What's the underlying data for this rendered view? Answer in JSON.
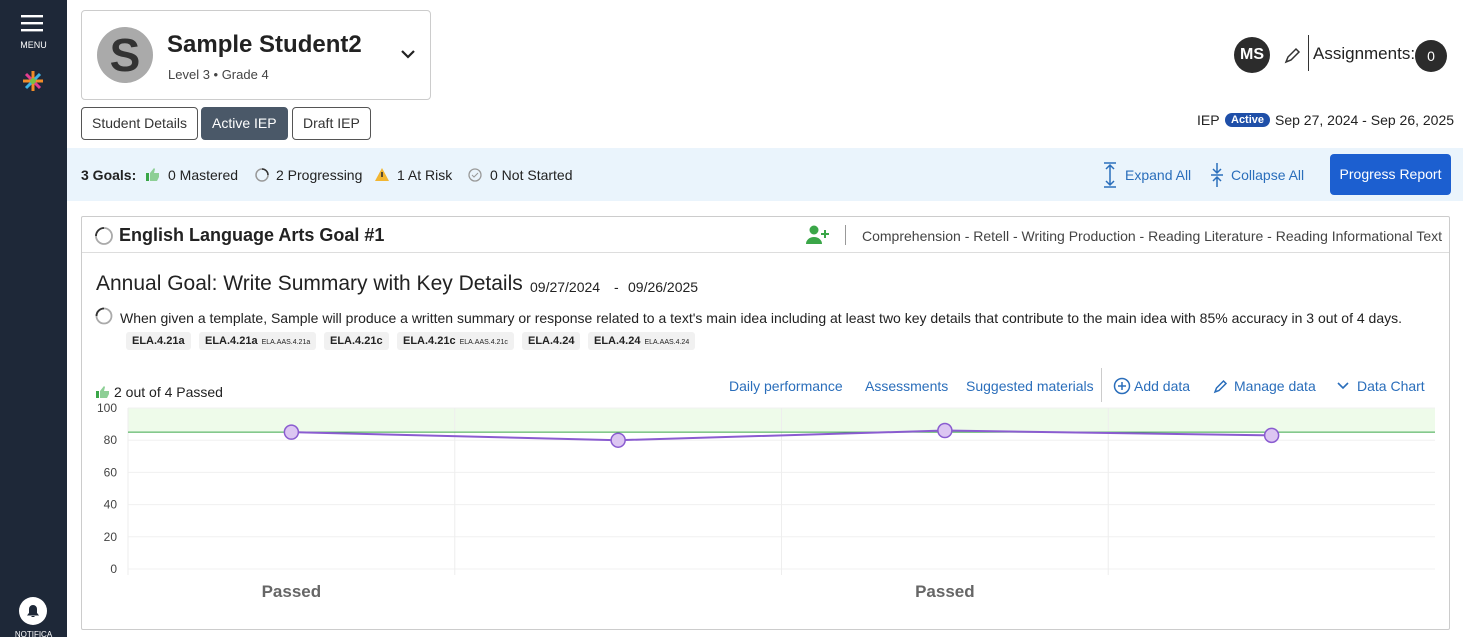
{
  "sidebar": {
    "menu": "MENU",
    "notifications": "NOTIFICA"
  },
  "student": {
    "avatar_letter": "S",
    "name": "Sample Student2",
    "level": "Level 3 • Grade 4"
  },
  "tabs": [
    "Student Details",
    "Active IEP",
    "Draft IEP"
  ],
  "user": {
    "initials": "MS",
    "assignments_label": "Assignments:",
    "assignments_count": 0
  },
  "iep": {
    "label": "IEP",
    "status": "Active",
    "dates": "Sep 27, 2024 - Sep 26, 2025"
  },
  "summary": {
    "goals": "3 Goals:",
    "mastered": "0 Mastered",
    "progressing": "2 Progressing",
    "at_risk": "1 At Risk",
    "not_started": "0 Not Started",
    "expand": "Expand All",
    "collapse": "Collapse All",
    "report": "Progress Report"
  },
  "goal": {
    "title": "English Language Arts Goal #1",
    "tags": "Comprehension - Retell - Writing Production - Reading Literature - Reading Informational Text",
    "annual_goal": "Annual Goal: Write Summary with Key Details",
    "start": "09/27/2024",
    "separator": "-",
    "end": "09/26/2025",
    "description": "When given a template, Sample will produce a written summary or response related to a text's main idea including at least two key details that contribute to the main idea with 85% accuracy in 3 out of 4 days.",
    "standards": [
      {
        "code": "ELA.4.21a"
      },
      {
        "code": "ELA.4.21a",
        "sub": "ELA.AAS.4.21a"
      },
      {
        "code": "ELA.4.21c"
      },
      {
        "code": "ELA.4.21c",
        "sub": "ELA.AAS.4.21c"
      },
      {
        "code": "ELA.4.24"
      },
      {
        "code": "ELA.4.24",
        "sub": "ELA.AAS.4.24"
      }
    ],
    "passed": "2 out of 4 Passed",
    "links": [
      "Daily performance",
      "Assessments",
      "Suggested materials",
      "Add data",
      "Manage data",
      "Data Chart"
    ]
  },
  "chart": {
    "type": "line",
    "categories": [
      "Passed",
      null,
      "Passed",
      null
    ],
    "values": [
      85,
      80,
      86,
      83
    ],
    "target": 85,
    "ylim": [
      0,
      100
    ],
    "yticks": [
      0,
      20,
      40,
      60,
      80,
      100
    ],
    "color": "#8a5cd0",
    "target_color": "#3aa648"
  }
}
